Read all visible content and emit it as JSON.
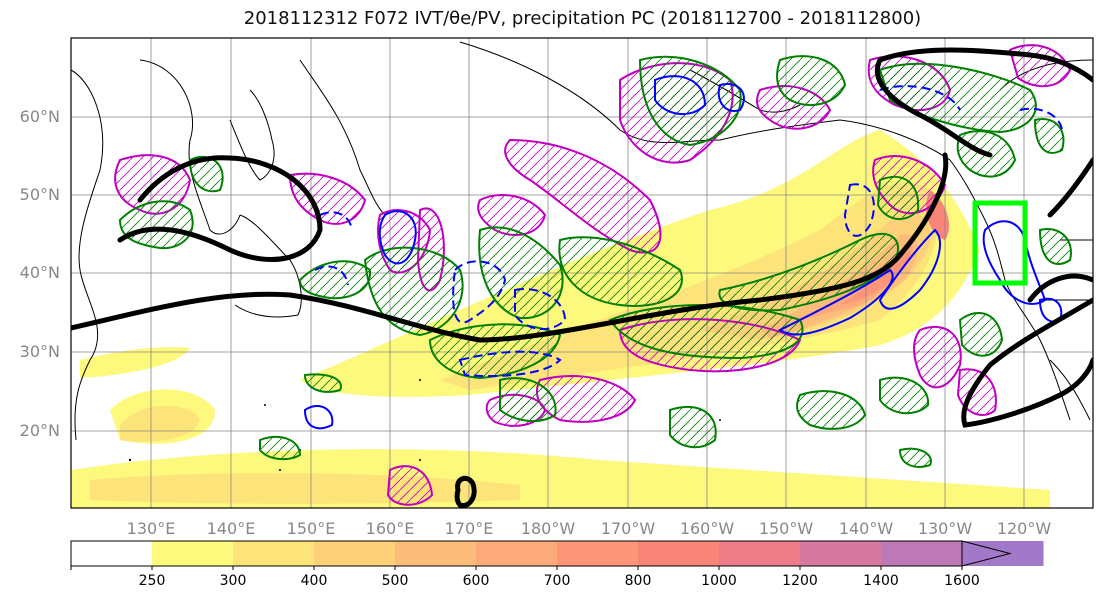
{
  "title": "2018112312 F072 IVT/θe/PV, precipitation PC (2018112700 - 2018112800)",
  "lat_ticks": [
    "60°N",
    "50°N",
    "40°N",
    "30°N",
    "20°N"
  ],
  "lon_ticks": [
    "130°E",
    "140°E",
    "150°E",
    "160°E",
    "170°E",
    "180°W",
    "170°W",
    "160°W",
    "150°W",
    "140°W",
    "130°W",
    "120°W"
  ],
  "colorbar": {
    "labels": [
      "250",
      "300",
      "400",
      "500",
      "600",
      "700",
      "800",
      "1000",
      "1200",
      "1400",
      "1600"
    ],
    "colors": [
      "#ffffff",
      "#fdf97d",
      "#fde47a",
      "#fdd07a",
      "#fdbd7a",
      "#fdaa7a",
      "#fd9678",
      "#f98478",
      "#eb7c88",
      "#d778a0",
      "#bd78b8",
      "#a278c8"
    ]
  },
  "colors": {
    "land_border": "#000000",
    "theta_e_contour": "#000000",
    "pv_positive": "#c000c0",
    "pv_negative": "#0000ff",
    "precip_pc": "#008000",
    "target_box": "#00ff00"
  }
}
